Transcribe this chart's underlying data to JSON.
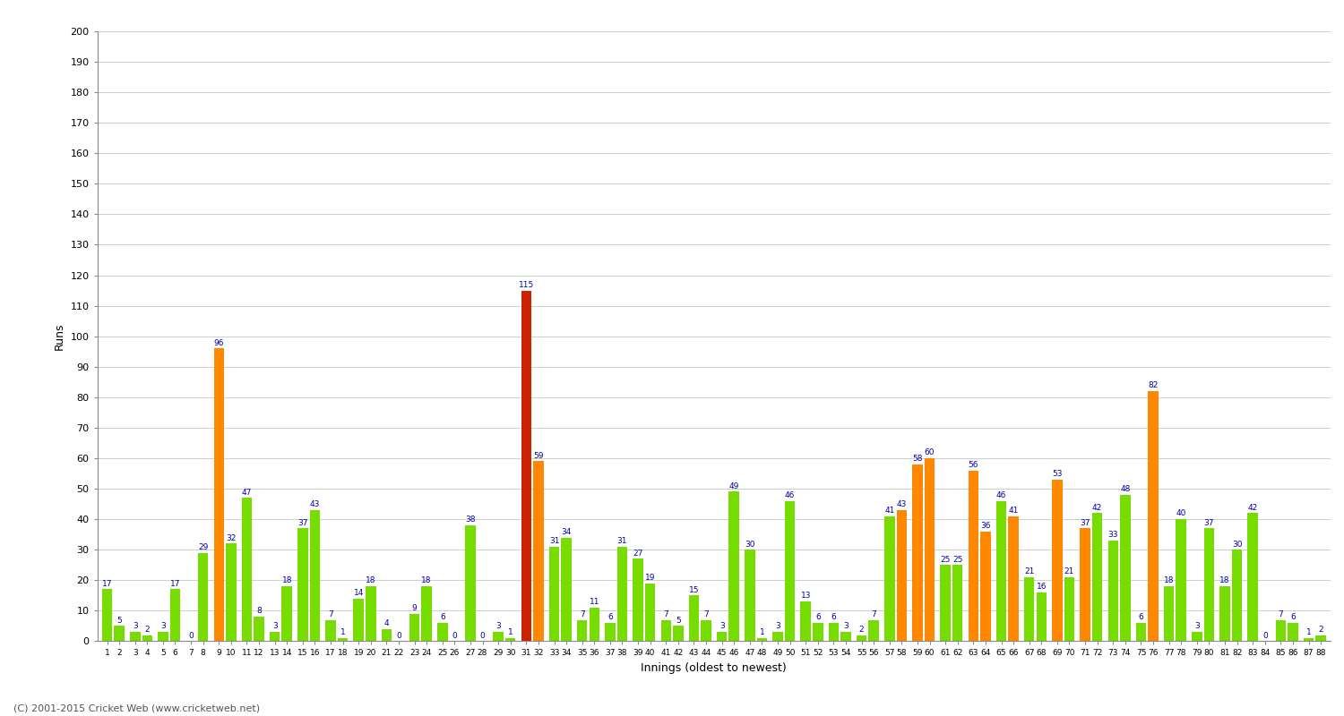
{
  "xlabel": "Innings (oldest to newest)",
  "ylabel": "Runs",
  "ylim": [
    0,
    200
  ],
  "yticks": [
    0,
    10,
    20,
    30,
    40,
    50,
    60,
    70,
    80,
    90,
    100,
    110,
    120,
    130,
    140,
    150,
    160,
    170,
    180,
    190,
    200
  ],
  "footer": "(C) 2001-2015 Cricket Web (www.cricketweb.net)",
  "innings": [
    1,
    2,
    3,
    4,
    5,
    6,
    7,
    8,
    9,
    10,
    11,
    12,
    13,
    14,
    15,
    16,
    17,
    18,
    19,
    20,
    21,
    22,
    23,
    24,
    25,
    26,
    27,
    28,
    29,
    30,
    31,
    32,
    33,
    34,
    35,
    36,
    37,
    38,
    39,
    40,
    41,
    42,
    43,
    44,
    45,
    46,
    47,
    48,
    49,
    50,
    51,
    52,
    53,
    54,
    55,
    56,
    57,
    58,
    59,
    60,
    61,
    62,
    63,
    64,
    65,
    66,
    67,
    68,
    69,
    70,
    71,
    72,
    73,
    74,
    75,
    76,
    77,
    78,
    79,
    80,
    81,
    82,
    83,
    84,
    85,
    86,
    87,
    88
  ],
  "values": [
    17,
    5,
    3,
    2,
    3,
    17,
    0,
    29,
    96,
    32,
    47,
    8,
    3,
    18,
    37,
    43,
    7,
    1,
    14,
    18,
    4,
    0,
    9,
    18,
    6,
    0,
    38,
    0,
    3,
    1,
    115,
    59,
    31,
    34,
    7,
    11,
    6,
    31,
    27,
    19,
    7,
    5,
    15,
    7,
    3,
    49,
    30,
    1,
    3,
    46,
    13,
    6,
    6,
    3,
    2,
    7,
    41,
    43,
    58,
    60,
    25,
    25,
    56,
    36,
    46,
    41,
    21,
    16,
    53,
    21,
    37,
    42,
    33,
    48,
    6,
    82,
    18,
    40,
    3,
    37,
    18,
    30,
    42,
    0,
    7,
    6,
    1,
    2
  ],
  "bar_colors": [
    "#77dd00",
    "#77dd00",
    "#77dd00",
    "#77dd00",
    "#77dd00",
    "#77dd00",
    "#77dd00",
    "#77dd00",
    "#ff8800",
    "#77dd00",
    "#77dd00",
    "#77dd00",
    "#77dd00",
    "#77dd00",
    "#77dd00",
    "#77dd00",
    "#77dd00",
    "#77dd00",
    "#77dd00",
    "#77dd00",
    "#77dd00",
    "#77dd00",
    "#77dd00",
    "#77dd00",
    "#77dd00",
    "#77dd00",
    "#77dd00",
    "#77dd00",
    "#77dd00",
    "#77dd00",
    "#cc2200",
    "#ff8800",
    "#77dd00",
    "#77dd00",
    "#77dd00",
    "#77dd00",
    "#77dd00",
    "#77dd00",
    "#77dd00",
    "#77dd00",
    "#77dd00",
    "#77dd00",
    "#77dd00",
    "#77dd00",
    "#77dd00",
    "#77dd00",
    "#77dd00",
    "#77dd00",
    "#77dd00",
    "#77dd00",
    "#77dd00",
    "#77dd00",
    "#77dd00",
    "#77dd00",
    "#77dd00",
    "#77dd00",
    "#77dd00",
    "#ff8800",
    "#ff8800",
    "#ff8800",
    "#77dd00",
    "#77dd00",
    "#ff8800",
    "#ff8800",
    "#77dd00",
    "#ff8800",
    "#77dd00",
    "#77dd00",
    "#ff8800",
    "#77dd00",
    "#ff8800",
    "#77dd00",
    "#77dd00",
    "#77dd00",
    "#77dd00",
    "#ff8800",
    "#77dd00",
    "#77dd00",
    "#77dd00",
    "#77dd00",
    "#77dd00",
    "#77dd00",
    "#77dd00",
    "#77dd00",
    "#77dd00",
    "#77dd00",
    "#77dd00",
    "#77dd00"
  ],
  "bg_color": "#ffffff",
  "grid_color": "#bbbbbb",
  "label_color": "#0000aa",
  "label_fontsize": 6.5,
  "title_fontsize": 11,
  "axis_label_fontsize": 9,
  "bar_width": 0.85
}
